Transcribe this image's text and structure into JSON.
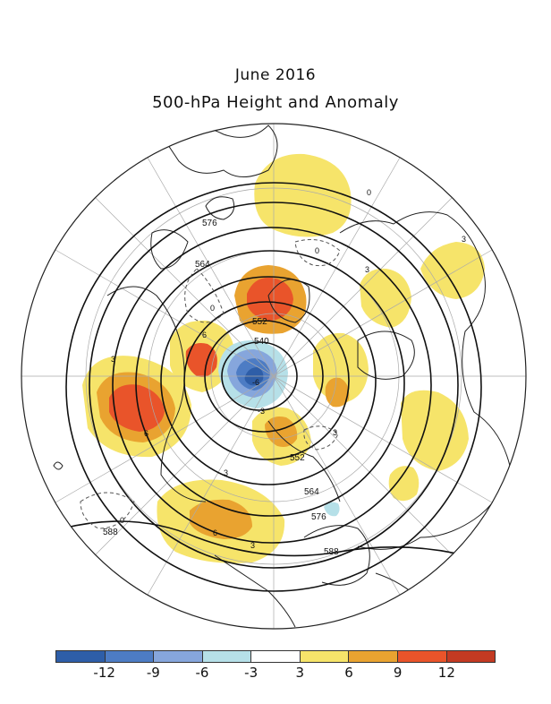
{
  "title": "June 2016",
  "subtitle": "500-hPa Height and Anomaly",
  "colors": {
    "neg12": "#2e5ea8",
    "neg9": "#4d7cc4",
    "neg6": "#86a6dc",
    "neg3": "#b6e0e8",
    "zero": "#ffffff",
    "pos3": "#f6e46a",
    "pos6": "#e9a330",
    "pos9": "#e9542a",
    "pos12": "#c33a22",
    "contour": "#111111",
    "coast": "#222222"
  },
  "colorbar": {
    "colors": [
      "#2e5ea8",
      "#4d7cc4",
      "#86a6dc",
      "#b6e0e8",
      "#ffffff",
      "#f6e46a",
      "#e9a330",
      "#e9542a",
      "#c33a22"
    ],
    "ticks": [
      "-12",
      "-9",
      "-6",
      "-3",
      "3",
      "6",
      "9",
      "12"
    ]
  },
  "height_labels": [
    "576",
    "564",
    "552",
    "540",
    "552",
    "564",
    "576",
    "588",
    "588"
  ],
  "anomaly_labels": [
    "3",
    "3",
    "6",
    "6",
    "3",
    "3",
    "6",
    "3",
    "3",
    "0",
    "0",
    "0",
    "-3",
    "-6",
    "0"
  ]
}
